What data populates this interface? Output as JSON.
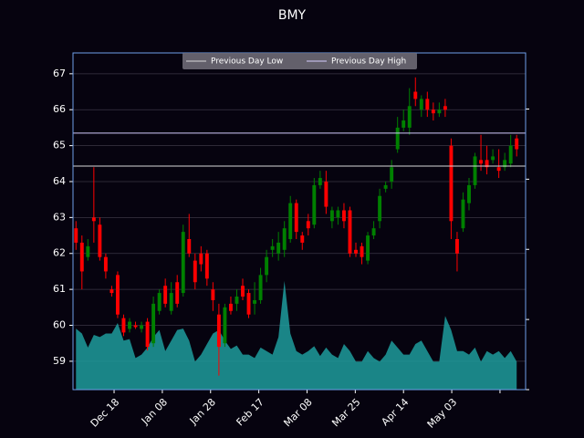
{
  "chart_data": {
    "type": "candlestick",
    "title": "BMY",
    "x": [
      0,
      1,
      2,
      3,
      4,
      5,
      6,
      7,
      8,
      9,
      10,
      11,
      12,
      13,
      14,
      15,
      16,
      17,
      18,
      19,
      20,
      21,
      22,
      23,
      24,
      25,
      26,
      27,
      28,
      29,
      30,
      31,
      32,
      33,
      34,
      35,
      36,
      37,
      38,
      39,
      40,
      41,
      42,
      43,
      44,
      45,
      46,
      47,
      48,
      49,
      50,
      51,
      52,
      53,
      54,
      55,
      56,
      57,
      58,
      59,
      60,
      61,
      62,
      63,
      64,
      65,
      66,
      67,
      68,
      69,
      70,
      71,
      72,
      73,
      74
    ],
    "open": [
      62.7,
      62.3,
      61.9,
      63.0,
      62.8,
      61.9,
      61.0,
      61.4,
      60.2,
      59.9,
      60.0,
      59.9,
      60.1,
      59.5,
      60.4,
      61.1,
      60.4,
      61.2,
      60.9,
      62.4,
      61.8,
      62.0,
      62.0,
      61.0,
      60.3,
      59.5,
      60.6,
      60.6,
      61.1,
      60.9,
      60.6,
      60.7,
      61.4,
      62.1,
      62.0,
      62.1,
      62.4,
      63.4,
      62.5,
      62.9,
      62.8,
      63.9,
      64.0,
      62.9,
      63.0,
      63.2,
      63.2,
      62.1,
      62.2,
      61.8,
      62.5,
      62.9,
      63.8,
      64.0,
      64.9,
      65.5,
      65.5,
      66.5,
      66.0,
      66.3,
      66.0,
      65.9,
      66.1,
      65.0,
      62.4,
      62.7,
      63.4,
      63.9,
      64.6,
      64.6,
      64.6,
      64.4,
      64.4,
      64.5,
      65.2
    ],
    "high": [
      62.9,
      62.5,
      62.4,
      64.4,
      63.0,
      62.0,
      61.1,
      61.5,
      60.3,
      60.2,
      60.1,
      60.1,
      60.2,
      60.8,
      61.0,
      61.3,
      61.2,
      61.4,
      62.8,
      63.1,
      62.0,
      62.2,
      62.1,
      61.2,
      60.6,
      60.6,
      60.8,
      61.0,
      61.3,
      61.0,
      61.2,
      61.6,
      62.1,
      62.4,
      62.6,
      62.9,
      63.6,
      63.5,
      62.6,
      63.1,
      64.1,
      64.3,
      64.3,
      63.3,
      63.3,
      63.4,
      63.3,
      62.3,
      62.3,
      62.6,
      62.9,
      63.8,
      64.0,
      64.6,
      65.8,
      66.0,
      66.6,
      66.9,
      66.4,
      66.5,
      66.2,
      66.2,
      66.3,
      65.2,
      62.6,
      63.7,
      64.1,
      64.8,
      65.3,
      65.0,
      64.9,
      64.9,
      64.8,
      65.3,
      65.3
    ],
    "low": [
      62.1,
      61.0,
      61.8,
      62.3,
      61.8,
      61.3,
      60.8,
      60.2,
      59.7,
      59.8,
      59.9,
      59.8,
      59.3,
      59.4,
      60.3,
      60.5,
      60.3,
      60.5,
      60.8,
      61.9,
      61.0,
      61.5,
      61.1,
      60.4,
      58.6,
      59.4,
      60.3,
      60.4,
      60.7,
      60.2,
      60.3,
      60.6,
      61.2,
      61.9,
      61.8,
      61.9,
      62.3,
      62.4,
      62.1,
      62.5,
      62.7,
      63.8,
      63.1,
      62.7,
      62.8,
      62.7,
      61.9,
      61.9,
      61.7,
      61.7,
      62.4,
      62.7,
      63.7,
      63.8,
      64.8,
      65.4,
      65.3,
      66.1,
      65.8,
      65.8,
      65.7,
      65.8,
      65.8,
      62.4,
      61.5,
      62.6,
      63.2,
      63.8,
      64.3,
      64.2,
      64.5,
      64.1,
      64.3,
      64.4,
      64.7
    ],
    "close": [
      62.3,
      61.5,
      62.2,
      62.9,
      61.9,
      61.5,
      60.9,
      60.3,
      59.8,
      60.1,
      59.95,
      60.0,
      59.4,
      60.6,
      60.9,
      60.6,
      60.9,
      60.6,
      62.6,
      62.0,
      61.2,
      61.7,
      61.3,
      60.7,
      59.4,
      60.5,
      60.4,
      60.8,
      60.8,
      60.3,
      60.7,
      61.4,
      61.9,
      62.2,
      62.3,
      62.7,
      63.4,
      62.6,
      62.3,
      62.7,
      63.9,
      64.1,
      63.3,
      63.2,
      63.2,
      62.9,
      62.0,
      62.0,
      61.9,
      62.5,
      62.7,
      63.6,
      63.9,
      64.4,
      65.5,
      65.7,
      66.1,
      66.3,
      66.3,
      66.0,
      65.9,
      66.0,
      66.0,
      62.9,
      62.0,
      63.5,
      63.9,
      64.7,
      64.5,
      64.4,
      64.7,
      64.3,
      64.6,
      65.0,
      64.9
    ],
    "volume": [
      0.87,
      0.8,
      0.6,
      0.78,
      0.75,
      0.8,
      0.8,
      0.95,
      0.7,
      0.72,
      0.45,
      0.5,
      0.6,
      0.75,
      0.85,
      0.55,
      0.7,
      0.85,
      0.87,
      0.7,
      0.4,
      0.5,
      0.65,
      0.8,
      0.85,
      0.7,
      0.58,
      0.63,
      0.5,
      0.5,
      0.45,
      0.6,
      0.55,
      0.5,
      0.75,
      1.55,
      0.8,
      0.55,
      0.5,
      0.55,
      0.62,
      0.48,
      0.6,
      0.5,
      0.45,
      0.65,
      0.55,
      0.4,
      0.4,
      0.55,
      0.45,
      0.4,
      0.5,
      0.7,
      0.6,
      0.5,
      0.5,
      0.65,
      0.7,
      0.55,
      0.4,
      0.4,
      1.05,
      0.85,
      0.55,
      0.55,
      0.5,
      0.6,
      0.4,
      0.55,
      0.5,
      0.55,
      0.45,
      0.55,
      0.4
    ],
    "up_color": "#008000",
    "down_color": "#ff0000",
    "volume_color": "#1f9c9c",
    "xlim": [
      -0.5,
      75.5
    ],
    "xticks": [
      {
        "value": 6.4,
        "label": "Dec 18"
      },
      {
        "value": 14.5,
        "label": "Jan 08"
      },
      {
        "value": 22.6,
        "label": "Jan 28"
      },
      {
        "value": 30.7,
        "label": "Feb 17"
      },
      {
        "value": 38.8,
        "label": "Mar 08"
      },
      {
        "value": 46.9,
        "label": "Mar 25"
      },
      {
        "value": 55,
        "label": "Apr 14"
      },
      {
        "value": 63.1,
        "label": "May 03"
      },
      {
        "value": 71.2,
        "label": null
      }
    ],
    "ylim": [
      58.21,
      67.58
    ],
    "yticks": [
      59,
      60,
      61,
      62,
      63,
      64,
      65,
      66,
      67
    ],
    "y2lim": [
      0,
      4.8
    ],
    "y2ticks": [
      0,
      1,
      2,
      3,
      4
    ],
    "grid": true,
    "hlines": [
      {
        "name": "Previous Day Low",
        "value": 64.43,
        "color": "#d8d8d8"
      },
      {
        "name": "Previous Day High",
        "value": 65.35,
        "color": "#d4ccff"
      }
    ],
    "legend": "upper center"
  }
}
